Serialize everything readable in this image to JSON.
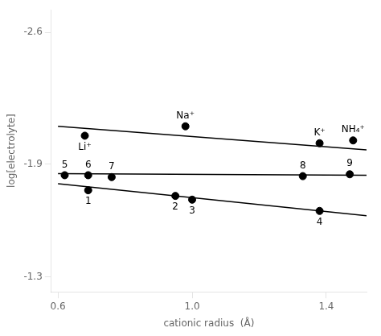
{
  "chart_data": {
    "type": "scatter",
    "xlabel": "cationic radius  (Å)",
    "ylabel": "log[electrolyte]",
    "xlim": [
      0.58,
      1.52
    ],
    "ylim": [
      -1.22,
      -2.72
    ],
    "xticks": [
      0.6,
      {
        "value": 1.0,
        "label": "1.0"
      },
      1.4
    ],
    "yticks": [
      -2.6,
      -1.9,
      -1.3
    ],
    "grid": false,
    "series": [
      {
        "type": "scatter",
        "color": "#000000",
        "marker": "circle",
        "x": [
          0.69,
          0.95,
          1.0,
          1.38
        ],
        "values": [
          -1.76,
          -1.73,
          -1.71,
          -1.65
        ]
      },
      {
        "type": "line",
        "color": "#000000",
        "line_style": "solid",
        "x": [
          0.6,
          1.52
        ],
        "values": [
          -1.795,
          -1.625
        ]
      },
      {
        "type": "scatter",
        "color": "#000000",
        "marker": "circle",
        "x": [
          0.62,
          0.69,
          0.76,
          1.33,
          1.47
        ],
        "values": [
          -1.84,
          -1.84,
          -1.83,
          -1.835,
          -1.845
        ]
      },
      {
        "type": "line",
        "color": "#000000",
        "line_style": "solid",
        "x": [
          0.6,
          1.52
        ],
        "values": [
          -1.848,
          -1.84
        ]
      },
      {
        "type": "scatter",
        "color": "#000000",
        "marker": "circle",
        "x": [
          0.68,
          0.98,
          1.38,
          1.48
        ],
        "values": [
          -2.05,
          -2.1,
          -2.01,
          -2.025
        ]
      },
      {
        "type": "line",
        "color": "#000000",
        "line_style": "solid",
        "x": [
          0.6,
          1.52
        ],
        "values": [
          -2.1,
          -1.975
        ]
      }
    ],
    "annotations": [
      {
        "text": "1",
        "x": 0.69,
        "y": -1.76
      },
      {
        "text": "2",
        "x": 0.95,
        "y": -1.73
      },
      {
        "text": "3",
        "x": 1.0,
        "y": -1.71
      },
      {
        "text": "4",
        "x": 1.38,
        "y": -1.65
      },
      {
        "text": "5",
        "x": 0.62,
        "y": -1.84
      },
      {
        "text": "6",
        "x": 0.69,
        "y": -1.84
      },
      {
        "text": "7",
        "x": 0.76,
        "y": -1.83
      },
      {
        "text": "8",
        "x": 1.33,
        "y": -1.835
      },
      {
        "text": "9",
        "x": 1.47,
        "y": -1.845
      },
      {
        "text": "Li⁺",
        "x": 0.68,
        "y": -2.05
      },
      {
        "text": "Na⁺",
        "x": 0.98,
        "y": -2.1
      },
      {
        "text": "K⁺",
        "x": 1.38,
        "y": -2.01
      },
      {
        "text": "NH₄⁺",
        "x": 1.48,
        "y": -2.025
      }
    ]
  }
}
